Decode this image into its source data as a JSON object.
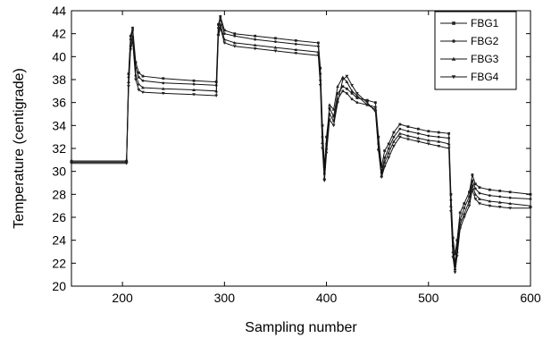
{
  "chart_data": {
    "type": "line",
    "xlabel": "Sampling number",
    "ylabel": "Temperature (centigrade)",
    "xlim": [
      150,
      600
    ],
    "ylim": [
      20,
      44
    ],
    "x_ticks": [
      200,
      300,
      400,
      500,
      600
    ],
    "y_ticks": [
      20,
      22,
      24,
      26,
      28,
      30,
      32,
      34,
      36,
      38,
      40,
      42,
      44
    ],
    "legend_position": "top-right",
    "grid": false,
    "series": [
      {
        "name": "FBG1",
        "marker": "square",
        "points": [
          [
            150,
            30.9
          ],
          [
            204,
            30.9
          ],
          [
            206,
            38.5
          ],
          [
            208,
            41.8
          ],
          [
            210,
            42.5
          ],
          [
            213,
            39.5
          ],
          [
            216,
            38.6
          ],
          [
            220,
            38.3
          ],
          [
            240,
            38.1
          ],
          [
            270,
            37.9
          ],
          [
            292,
            37.8
          ],
          [
            294,
            42.8
          ],
          [
            296,
            43.5
          ],
          [
            300,
            42.3
          ],
          [
            310,
            42
          ],
          [
            330,
            41.8
          ],
          [
            350,
            41.6
          ],
          [
            370,
            41.4
          ],
          [
            392,
            41.2
          ],
          [
            394,
            39
          ],
          [
            396,
            34
          ],
          [
            398,
            30.4
          ],
          [
            400,
            33
          ],
          [
            403,
            35.5
          ],
          [
            407,
            34.8
          ],
          [
            411,
            36.8
          ],
          [
            416,
            37.4
          ],
          [
            420,
            37.2
          ],
          [
            425,
            36.8
          ],
          [
            430,
            36.4
          ],
          [
            440,
            36.2
          ],
          [
            448,
            36
          ],
          [
            451,
            33
          ],
          [
            454,
            30.4
          ],
          [
            457,
            31.8
          ],
          [
            461,
            32.4
          ],
          [
            466,
            33.4
          ],
          [
            472,
            34.1
          ],
          [
            480,
            33.9
          ],
          [
            490,
            33.7
          ],
          [
            500,
            33.5
          ],
          [
            510,
            33.4
          ],
          [
            520,
            33.3
          ],
          [
            522,
            28
          ],
          [
            524,
            24.2
          ],
          [
            526,
            22.8
          ],
          [
            528,
            24
          ],
          [
            531,
            26.4
          ],
          [
            535,
            27.2
          ],
          [
            540,
            28.2
          ],
          [
            543,
            29.7
          ],
          [
            546,
            28.9
          ],
          [
            550,
            28.6
          ],
          [
            560,
            28.4
          ],
          [
            570,
            28.3
          ],
          [
            580,
            28.2
          ],
          [
            600,
            28.0
          ]
        ]
      },
      {
        "name": "FBG2",
        "marker": "circle",
        "points": [
          [
            150,
            30.8
          ],
          [
            204,
            30.8
          ],
          [
            206,
            38.2
          ],
          [
            208,
            41.5
          ],
          [
            210,
            42.3
          ],
          [
            213,
            39
          ],
          [
            216,
            38.2
          ],
          [
            220,
            37.9
          ],
          [
            240,
            37.7
          ],
          [
            270,
            37.6
          ],
          [
            292,
            37.5
          ],
          [
            294,
            42.5
          ],
          [
            296,
            43.3
          ],
          [
            300,
            42
          ],
          [
            310,
            41.8
          ],
          [
            330,
            41.5
          ],
          [
            350,
            41.3
          ],
          [
            370,
            41.1
          ],
          [
            392,
            40.9
          ],
          [
            394,
            38.5
          ],
          [
            396,
            33
          ],
          [
            398,
            29.8
          ],
          [
            400,
            32.4
          ],
          [
            403,
            35
          ],
          [
            407,
            34.4
          ],
          [
            411,
            36.3
          ],
          [
            416,
            37
          ],
          [
            420,
            36.8
          ],
          [
            425,
            36.3
          ],
          [
            430,
            36
          ],
          [
            440,
            35.8
          ],
          [
            448,
            35.6
          ],
          [
            451,
            32.4
          ],
          [
            454,
            29.9
          ],
          [
            457,
            31.2
          ],
          [
            461,
            32
          ],
          [
            466,
            33
          ],
          [
            472,
            33.7
          ],
          [
            480,
            33.5
          ],
          [
            490,
            33.3
          ],
          [
            500,
            33.1
          ],
          [
            510,
            33
          ],
          [
            520,
            32.9
          ],
          [
            522,
            27.5
          ],
          [
            524,
            23.5
          ],
          [
            526,
            22.0
          ],
          [
            528,
            23.5
          ],
          [
            531,
            25.8
          ],
          [
            535,
            26.8
          ],
          [
            540,
            27.8
          ],
          [
            543,
            29.2
          ],
          [
            546,
            28.5
          ],
          [
            550,
            28.1
          ],
          [
            560,
            27.9
          ],
          [
            570,
            27.8
          ],
          [
            580,
            27.7
          ],
          [
            600,
            27.6
          ]
        ]
      },
      {
        "name": "FBG3",
        "marker": "triangle-up",
        "points": [
          [
            150,
            30.9
          ],
          [
            204,
            30.9
          ],
          [
            206,
            37.8
          ],
          [
            208,
            41
          ],
          [
            210,
            41.8
          ],
          [
            213,
            38.4
          ],
          [
            216,
            37.6
          ],
          [
            220,
            37.3
          ],
          [
            240,
            37.2
          ],
          [
            270,
            37.1
          ],
          [
            292,
            37
          ],
          [
            294,
            42
          ],
          [
            296,
            42.8
          ],
          [
            300,
            41.5
          ],
          [
            310,
            41.2
          ],
          [
            330,
            41
          ],
          [
            350,
            40.8
          ],
          [
            370,
            40.6
          ],
          [
            392,
            40.4
          ],
          [
            394,
            38
          ],
          [
            396,
            32.5
          ],
          [
            398,
            29.4
          ],
          [
            400,
            32
          ],
          [
            403,
            35.8
          ],
          [
            407,
            35.4
          ],
          [
            411,
            37.4
          ],
          [
            416,
            38.2
          ],
          [
            420,
            37.8
          ],
          [
            425,
            37
          ],
          [
            430,
            36.6
          ],
          [
            440,
            35.8
          ],
          [
            448,
            35.4
          ],
          [
            451,
            32
          ],
          [
            454,
            29.6
          ],
          [
            457,
            30.8
          ],
          [
            461,
            31.6
          ],
          [
            466,
            32.6
          ],
          [
            472,
            33.3
          ],
          [
            480,
            33.1
          ],
          [
            490,
            32.9
          ],
          [
            500,
            32.7
          ],
          [
            510,
            32.6
          ],
          [
            520,
            32.4
          ],
          [
            522,
            27
          ],
          [
            524,
            23
          ],
          [
            526,
            21.5
          ],
          [
            528,
            23
          ],
          [
            531,
            25.4
          ],
          [
            535,
            26.3
          ],
          [
            540,
            27.4
          ],
          [
            543,
            28.8
          ],
          [
            546,
            28
          ],
          [
            550,
            27.6
          ],
          [
            560,
            27.4
          ],
          [
            570,
            27.3
          ],
          [
            580,
            27.2
          ],
          [
            600,
            27.0
          ]
        ]
      },
      {
        "name": "FBG4",
        "marker": "triangle-down",
        "points": [
          [
            150,
            30.7
          ],
          [
            204,
            30.7
          ],
          [
            206,
            37.4
          ],
          [
            208,
            40.6
          ],
          [
            210,
            41.4
          ],
          [
            213,
            38
          ],
          [
            216,
            37.1
          ],
          [
            220,
            36.9
          ],
          [
            240,
            36.8
          ],
          [
            270,
            36.7
          ],
          [
            292,
            36.6
          ],
          [
            294,
            41.8
          ],
          [
            296,
            42.5
          ],
          [
            300,
            41.2
          ],
          [
            310,
            40.9
          ],
          [
            330,
            40.7
          ],
          [
            350,
            40.5
          ],
          [
            370,
            40.3
          ],
          [
            392,
            40.1
          ],
          [
            394,
            37.5
          ],
          [
            396,
            32
          ],
          [
            398,
            29.2
          ],
          [
            400,
            31.6
          ],
          [
            403,
            34.5
          ],
          [
            407,
            34
          ],
          [
            411,
            36
          ],
          [
            416,
            38
          ],
          [
            420,
            38.3
          ],
          [
            425,
            37.5
          ],
          [
            430,
            36.8
          ],
          [
            440,
            36
          ],
          [
            448,
            35.2
          ],
          [
            451,
            31.8
          ],
          [
            454,
            29.5
          ],
          [
            457,
            30.4
          ],
          [
            461,
            31.2
          ],
          [
            466,
            32.2
          ],
          [
            472,
            33
          ],
          [
            480,
            32.8
          ],
          [
            490,
            32.6
          ],
          [
            500,
            32.4
          ],
          [
            510,
            32.2
          ],
          [
            520,
            32
          ],
          [
            522,
            26.5
          ],
          [
            524,
            22.5
          ],
          [
            526,
            21.2
          ],
          [
            528,
            22.6
          ],
          [
            531,
            25
          ],
          [
            535,
            26
          ],
          [
            540,
            27
          ],
          [
            543,
            28.4
          ],
          [
            546,
            27.6
          ],
          [
            550,
            27.2
          ],
          [
            560,
            27
          ],
          [
            570,
            26.9
          ],
          [
            580,
            26.8
          ],
          [
            600,
            26.8
          ]
        ]
      }
    ]
  }
}
